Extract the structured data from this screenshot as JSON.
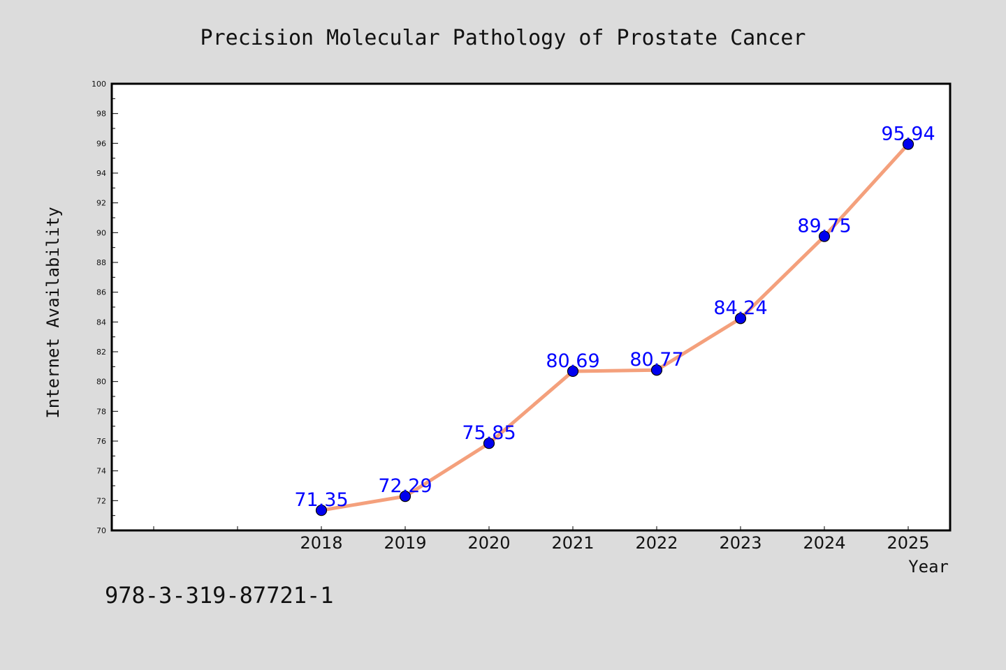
{
  "chart_data": {
    "type": "line",
    "title": "Precision Molecular Pathology of Prostate Cancer",
    "xlabel": "Year",
    "ylabel": "Internet Availability",
    "categories": [
      "2018",
      "2019",
      "2020",
      "2021",
      "2022",
      "2023",
      "2024",
      "2025"
    ],
    "series": [
      {
        "values": [
          71.35,
          72.29,
          75.85,
          80.69,
          80.77,
          84.24,
          89.75,
          95.94
        ],
        "data_labels": [
          "71.35",
          "72.29",
          "75.85",
          "80.69",
          "80.77",
          "84.24",
          "89.75",
          "95.94"
        ]
      }
    ],
    "ylim": [
      70,
      100
    ],
    "yticks": [
      "70",
      "72",
      "74",
      "76",
      "78",
      "80",
      "82",
      "84",
      "86",
      "88",
      "90",
      "92",
      "94",
      "96",
      "98",
      "100"
    ],
    "grid": false,
    "legend": "none"
  },
  "footer": {
    "code": "978-3-319-87721-1"
  },
  "colors": {
    "background": "#dcdcdc",
    "plot_area": "#ffffff",
    "line": "#f4a07c",
    "marker": "#0000ee",
    "data_label": "#0000ff"
  }
}
